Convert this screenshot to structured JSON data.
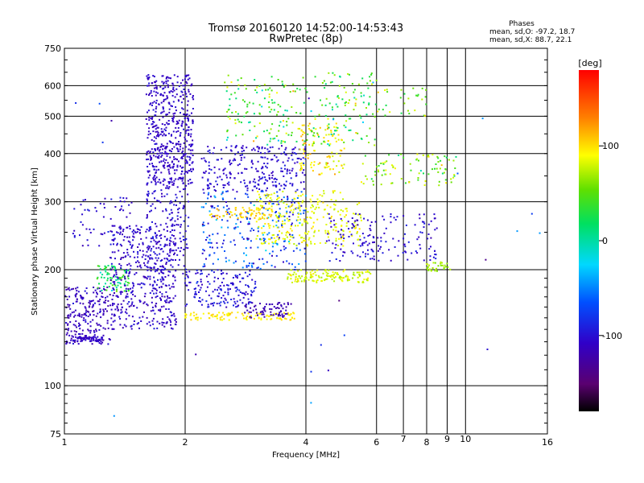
{
  "chart_data": {
    "type": "scatter",
    "title": "Tromsø 20160120 14:52:00-14:53:43",
    "subtitle": "RwPretec (8p)",
    "xlabel": "Frequency [MHz]",
    "ylabel": "Stationary phase Virtual Height [km]",
    "x_scale": "log",
    "y_scale": "log",
    "xlim": [
      1,
      16
    ],
    "ylim": [
      75,
      750
    ],
    "x_ticks": [
      1,
      2,
      4,
      6,
      8,
      16
    ],
    "x_tick_labels": [
      "1",
      "2",
      "4",
      "6",
      "8",
      "16"
    ],
    "x_minor_ticks": [
      7,
      9,
      10
    ],
    "x_minor_tick_labels": [
      "7",
      "9",
      "10"
    ],
    "y_ticks": [
      75,
      100,
      200,
      300,
      400,
      500,
      600,
      750
    ],
    "y_tick_labels": [
      "75",
      "100",
      "200",
      "300",
      "400",
      "500",
      "600",
      "750"
    ],
    "grid": true,
    "legend": {
      "title": "Phases",
      "line1": "mean, sd,O: -97.2, 18.7",
      "line2": "mean, sd,X:  88.7, 22.1"
    },
    "colorbar": {
      "label": "[deg]",
      "range": [
        -180,
        180
      ],
      "ticks": [
        100,
        0,
        -100
      ],
      "tick_labels": [
        "100",
        "0",
        "-100"
      ]
    },
    "clusters": [
      {
        "fmin": 1.0,
        "fmax": 1.3,
        "hmin": 128,
        "hmax": 180,
        "phase": -110,
        "spread": 25,
        "n": 220
      },
      {
        "fmin": 1.05,
        "fmax": 1.25,
        "hmin": 130,
        "hmax": 134,
        "phase": -105,
        "spread": 10,
        "n": 60
      },
      {
        "fmin": 1.2,
        "fmax": 1.45,
        "hmin": 175,
        "hmax": 205,
        "phase": 20,
        "spread": 50,
        "n": 80
      },
      {
        "fmin": 1.3,
        "fmax": 1.9,
        "hmin": 140,
        "hmax": 260,
        "phase": -105,
        "spread": 20,
        "n": 420
      },
      {
        "fmin": 1.05,
        "fmax": 1.5,
        "hmin": 230,
        "hmax": 310,
        "phase": -100,
        "spread": 20,
        "n": 60
      },
      {
        "fmin": 1.6,
        "fmax": 2.1,
        "hmin": 330,
        "hmax": 640,
        "phase": -105,
        "spread": 15,
        "n": 520
      },
      {
        "fmin": 1.6,
        "fmax": 2.05,
        "hmin": 180,
        "hmax": 330,
        "phase": -100,
        "spread": 20,
        "n": 200
      },
      {
        "fmin": 2.0,
        "fmax": 3.0,
        "hmin": 160,
        "hmax": 200,
        "phase": -95,
        "spread": 25,
        "n": 160
      },
      {
        "fmin": 2.0,
        "fmax": 3.8,
        "hmin": 148,
        "hmax": 155,
        "phase": 100,
        "spread": 15,
        "n": 110
      },
      {
        "fmin": 2.8,
        "fmax": 3.7,
        "hmin": 150,
        "hmax": 165,
        "phase": -115,
        "spread": 10,
        "n": 70
      },
      {
        "fmin": 2.2,
        "fmax": 4.0,
        "hmin": 320,
        "hmax": 420,
        "phase": -100,
        "spread": 20,
        "n": 260
      },
      {
        "fmin": 2.2,
        "fmax": 4.0,
        "hmin": 200,
        "hmax": 320,
        "phase": -70,
        "spread": 70,
        "n": 260
      },
      {
        "fmin": 2.3,
        "fmax": 3.3,
        "hmin": 270,
        "hmax": 290,
        "phase": 110,
        "spread": 20,
        "n": 60
      },
      {
        "fmin": 3.0,
        "fmax": 5.5,
        "hmin": 230,
        "hmax": 320,
        "phase": 90,
        "spread": 25,
        "n": 280
      },
      {
        "fmin": 3.6,
        "fmax": 5.8,
        "hmin": 185,
        "hmax": 200,
        "phase": 85,
        "spread": 25,
        "n": 140
      },
      {
        "fmin": 3.8,
        "fmax": 5.0,
        "hmin": 350,
        "hmax": 480,
        "phase": 100,
        "spread": 40,
        "n": 110
      },
      {
        "fmin": 2.5,
        "fmax": 6.0,
        "hmin": 420,
        "hmax": 650,
        "phase": 40,
        "spread": 90,
        "n": 260
      },
      {
        "fmin": 4.5,
        "fmax": 8.5,
        "hmin": 210,
        "hmax": 280,
        "phase": -100,
        "spread": 20,
        "n": 160
      },
      {
        "fmin": 5.5,
        "fmax": 9.5,
        "hmin": 330,
        "hmax": 400,
        "phase": 60,
        "spread": 90,
        "n": 90
      },
      {
        "fmin": 8.0,
        "fmax": 9.2,
        "hmin": 198,
        "hmax": 210,
        "phase": 70,
        "spread": 20,
        "n": 30
      },
      {
        "fmin": 6.0,
        "fmax": 8.0,
        "hmin": 500,
        "hmax": 600,
        "phase": 60,
        "spread": 80,
        "n": 30
      },
      {
        "fmin": 1.0,
        "fmax": 16.0,
        "hmin": 80,
        "hmax": 640,
        "phase": -80,
        "spread": 90,
        "n": 25
      }
    ]
  }
}
